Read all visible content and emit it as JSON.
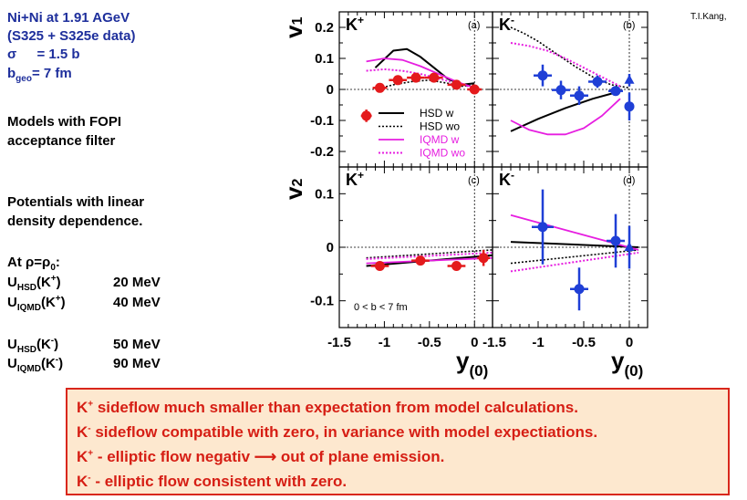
{
  "slide": {
    "system": "Ni+Ni at 1.91 AGeV",
    "dataset": "(S325 + S325e data)",
    "sigma_sym": "σ",
    "sigma_val": "= 1.5 b",
    "bgeo_b": "b",
    "bgeo_sub": "geo",
    "bgeo_val": "= 7 fm",
    "models_line1": "Models with FOPI",
    "models_line2": "acceptance filter",
    "pot_line1": "Potentials with linear",
    "pot_line2": "density dependence.",
    "at_rho": "At ρ=ρ",
    "at_rho_sub": "0",
    "at_colon": ":",
    "credit": "T.I.Kang,",
    "potentials": [
      {
        "sym": "U",
        "sub": "HSD",
        "particle": "(K",
        "charge": "+",
        "close": ")",
        "value": "20 MeV"
      },
      {
        "sym": "U",
        "sub": "IQMD",
        "particle": "(K",
        "charge": "+",
        "close": ")",
        "value": "40 MeV"
      },
      {
        "sym": "U",
        "sub": "HSD",
        "particle": "(K",
        "charge": "-",
        "close": ")",
        "value": "50 MeV"
      },
      {
        "sym": "U",
        "sub": "IQMD",
        "particle": "(K",
        "charge": "-",
        "close": ")",
        "value": "90 MeV"
      }
    ],
    "conclusions": [
      {
        "k": "K",
        "sup": "+",
        "text": " sideflow much smaller than expectation  from model calculations."
      },
      {
        "k": "K",
        "sup": "-",
        "text": " sideflow compatible with zero, in variance with model expectiations."
      },
      {
        "k": "K",
        "sup": "+",
        "text": " - elliptic flow negativ ⟶ out of plane emission."
      },
      {
        "k": "K",
        "sup": "-",
        "text": " - elliptic flow consistent with zero."
      }
    ]
  },
  "chart_data": [
    {
      "type": "scatter",
      "panel": "(a)",
      "particle": "K",
      "charge": "+",
      "ylabel": "v",
      "ylabel_sub": "1",
      "xlabel": "",
      "xlim": [
        -1.5,
        0.2
      ],
      "ylim": [
        -0.25,
        0.25
      ],
      "yticks": [
        "0.2",
        "0.1",
        "0",
        "-0.1",
        "-0.2"
      ],
      "points": [
        {
          "x": -1.2,
          "y": -0.085,
          "ex": 0.06,
          "ey": 0.02
        },
        {
          "x": -1.05,
          "y": 0.005,
          "ex": 0.08,
          "ey": 0.015
        },
        {
          "x": -0.85,
          "y": 0.03,
          "ex": 0.1,
          "ey": 0.015
        },
        {
          "x": -0.65,
          "y": 0.038,
          "ex": 0.1,
          "ey": 0.015
        },
        {
          "x": -0.45,
          "y": 0.038,
          "ex": 0.1,
          "ey": 0.015
        },
        {
          "x": -0.2,
          "y": 0.015,
          "ex": 0.1,
          "ey": 0.015
        },
        {
          "x": 0.0,
          "y": 0.0,
          "ex": 0.08,
          "ey": 0.015
        }
      ],
      "curves": [
        {
          "name": "HSD w",
          "style": "black-solid",
          "x": [
            -1.1,
            -0.9,
            -0.75,
            -0.6,
            -0.45,
            -0.3,
            -0.15,
            0.0
          ],
          "y": [
            0.07,
            0.125,
            0.13,
            0.105,
            0.07,
            0.035,
            0.015,
            0.02
          ]
        },
        {
          "name": "HSD wo",
          "style": "black-dotted",
          "x": [
            -1.1,
            -0.9,
            -0.7,
            -0.5,
            -0.3,
            -0.15,
            0.0
          ],
          "y": [
            0.0,
            0.015,
            0.025,
            0.03,
            0.02,
            0.01,
            0.015
          ]
        },
        {
          "name": "IQMD w",
          "style": "magenta-solid",
          "x": [
            -1.2,
            -1.0,
            -0.8,
            -0.6,
            -0.4,
            -0.2,
            0.0
          ],
          "y": [
            0.09,
            0.1,
            0.095,
            0.075,
            0.05,
            0.025,
            0.005
          ]
        },
        {
          "name": "IQMD wo",
          "style": "magenta-dotted",
          "x": [
            -1.2,
            -1.0,
            -0.8,
            -0.6,
            -0.4,
            -0.2,
            0.0
          ],
          "y": [
            0.06,
            0.065,
            0.06,
            0.05,
            0.035,
            0.02,
            0.005
          ]
        }
      ],
      "legend": [
        "HSD w",
        "HSD wo",
        "IQMD w",
        "IQMD wo"
      ]
    },
    {
      "type": "scatter",
      "panel": "(b)",
      "particle": "K",
      "charge": "-",
      "xlim": [
        -1.5,
        0.2
      ],
      "ylim": [
        -0.25,
        0.25
      ],
      "points": [
        {
          "x": -0.95,
          "y": 0.045,
          "ex": 0.1,
          "ey": 0.035,
          "shape": "circle"
        },
        {
          "x": -0.75,
          "y": -0.002,
          "ex": 0.1,
          "ey": 0.03,
          "shape": "circle"
        },
        {
          "x": -0.55,
          "y": -0.02,
          "ex": 0.1,
          "ey": 0.03,
          "shape": "circle"
        },
        {
          "x": -0.35,
          "y": 0.025,
          "ex": 0.1,
          "ey": 0.02,
          "shape": "circle"
        },
        {
          "x": -0.15,
          "y": -0.005,
          "ex": 0.08,
          "ey": 0.015,
          "shape": "circle"
        },
        {
          "x": 0.0,
          "y": 0.03,
          "ex": 0.0,
          "ey": 0.02,
          "shape": "triangle"
        },
        {
          "x": 0.0,
          "y": -0.055,
          "ex": 0.0,
          "ey": 0.045,
          "shape": "circle"
        }
      ],
      "curves": [
        {
          "name": "HSD w",
          "style": "black-solid",
          "x": [
            -1.3,
            -1.0,
            -0.7,
            -0.4,
            -0.15
          ],
          "y": [
            -0.135,
            -0.095,
            -0.06,
            -0.03,
            -0.01
          ]
        },
        {
          "name": "HSD wo",
          "style": "black-dotted",
          "x": [
            -1.3,
            -1.15,
            -1.0,
            -0.8,
            -0.6,
            -0.4,
            -0.2,
            0.0
          ],
          "y": [
            0.2,
            0.18,
            0.155,
            0.115,
            0.075,
            0.04,
            0.015,
            0.005
          ]
        },
        {
          "name": "IQMD w",
          "style": "magenta-solid",
          "x": [
            -1.3,
            -1.1,
            -0.9,
            -0.7,
            -0.5,
            -0.3,
            -0.1
          ],
          "y": [
            -0.1,
            -0.13,
            -0.145,
            -0.145,
            -0.125,
            -0.085,
            -0.03
          ]
        },
        {
          "name": "IQMD wo",
          "style": "magenta-dotted",
          "x": [
            -1.3,
            -1.1,
            -0.9,
            -0.7,
            -0.5,
            -0.3,
            -0.1
          ],
          "y": [
            0.15,
            0.14,
            0.125,
            0.1,
            0.07,
            0.04,
            0.01
          ]
        }
      ]
    },
    {
      "type": "scatter",
      "panel": "(c)",
      "particle": "K",
      "charge": "+",
      "ylabel": "v",
      "ylabel_sub": "2",
      "xlabel": "y",
      "xlabel_sub": "(0)",
      "xlim": [
        -1.5,
        0.2
      ],
      "ylim": [
        -0.15,
        0.15
      ],
      "xticks": [
        "-1.5",
        "-1",
        "-0.5",
        "0"
      ],
      "yticks": [
        "0.1",
        "0",
        "-0.1"
      ],
      "annotation": "0 < b < 7 fm",
      "points": [
        {
          "x": -1.05,
          "y": -0.035,
          "ex": 0.1,
          "ey": 0.008
        },
        {
          "x": -0.6,
          "y": -0.025,
          "ex": 0.1,
          "ey": 0.008
        },
        {
          "x": -0.2,
          "y": -0.035,
          "ex": 0.1,
          "ey": 0.008
        },
        {
          "x": 0.1,
          "y": -0.02,
          "ex": 0.07,
          "ey": 0.015
        }
      ],
      "curves": [
        {
          "name": "HSD w",
          "style": "black-solid",
          "x": [
            -1.2,
            0.2
          ],
          "y": [
            -0.035,
            -0.015
          ]
        },
        {
          "name": "HSD wo",
          "style": "black-dotted",
          "x": [
            -1.2,
            0.2
          ],
          "y": [
            -0.02,
            -0.005
          ]
        },
        {
          "name": "IQMD w",
          "style": "magenta-solid",
          "x": [
            -1.2,
            0.2
          ],
          "y": [
            -0.03,
            -0.02
          ]
        },
        {
          "name": "IQMD wo",
          "style": "magenta-dotted",
          "x": [
            -1.2,
            0.2
          ],
          "y": [
            -0.022,
            -0.01
          ]
        }
      ]
    },
    {
      "type": "scatter",
      "panel": "(d)",
      "particle": "K",
      "charge": "-",
      "xlabel": "y",
      "xlabel_sub": "(0)",
      "xlim": [
        -1.5,
        0.2
      ],
      "ylim": [
        -0.15,
        0.15
      ],
      "xticks": [
        "-1.5",
        "-1",
        "-0.5",
        "0"
      ],
      "points": [
        {
          "x": -0.95,
          "y": 0.038,
          "ex": 0.12,
          "ey": 0.07,
          "shape": "circle"
        },
        {
          "x": -0.55,
          "y": -0.078,
          "ex": 0.1,
          "ey": 0.04,
          "shape": "circle"
        },
        {
          "x": -0.15,
          "y": 0.012,
          "ex": 0.1,
          "ey": 0.05,
          "shape": "circle"
        },
        {
          "x": 0.0,
          "y": 0.0,
          "ex": 0.0,
          "ey": 0.04,
          "shape": "triangle"
        }
      ],
      "curves": [
        {
          "name": "HSD w",
          "style": "black-solid",
          "x": [
            -1.3,
            0.1
          ],
          "y": [
            0.01,
            0.0
          ]
        },
        {
          "name": "HSD wo",
          "style": "black-dotted",
          "x": [
            -1.3,
            0.1
          ],
          "y": [
            -0.03,
            -0.005
          ]
        },
        {
          "name": "IQMD w",
          "style": "magenta-solid",
          "x": [
            -1.3,
            0.1
          ],
          "y": [
            0.06,
            -0.005
          ]
        },
        {
          "name": "IQMD wo",
          "style": "magenta-dotted",
          "x": [
            -1.3,
            0.1
          ],
          "y": [
            -0.045,
            -0.01
          ]
        }
      ]
    }
  ]
}
